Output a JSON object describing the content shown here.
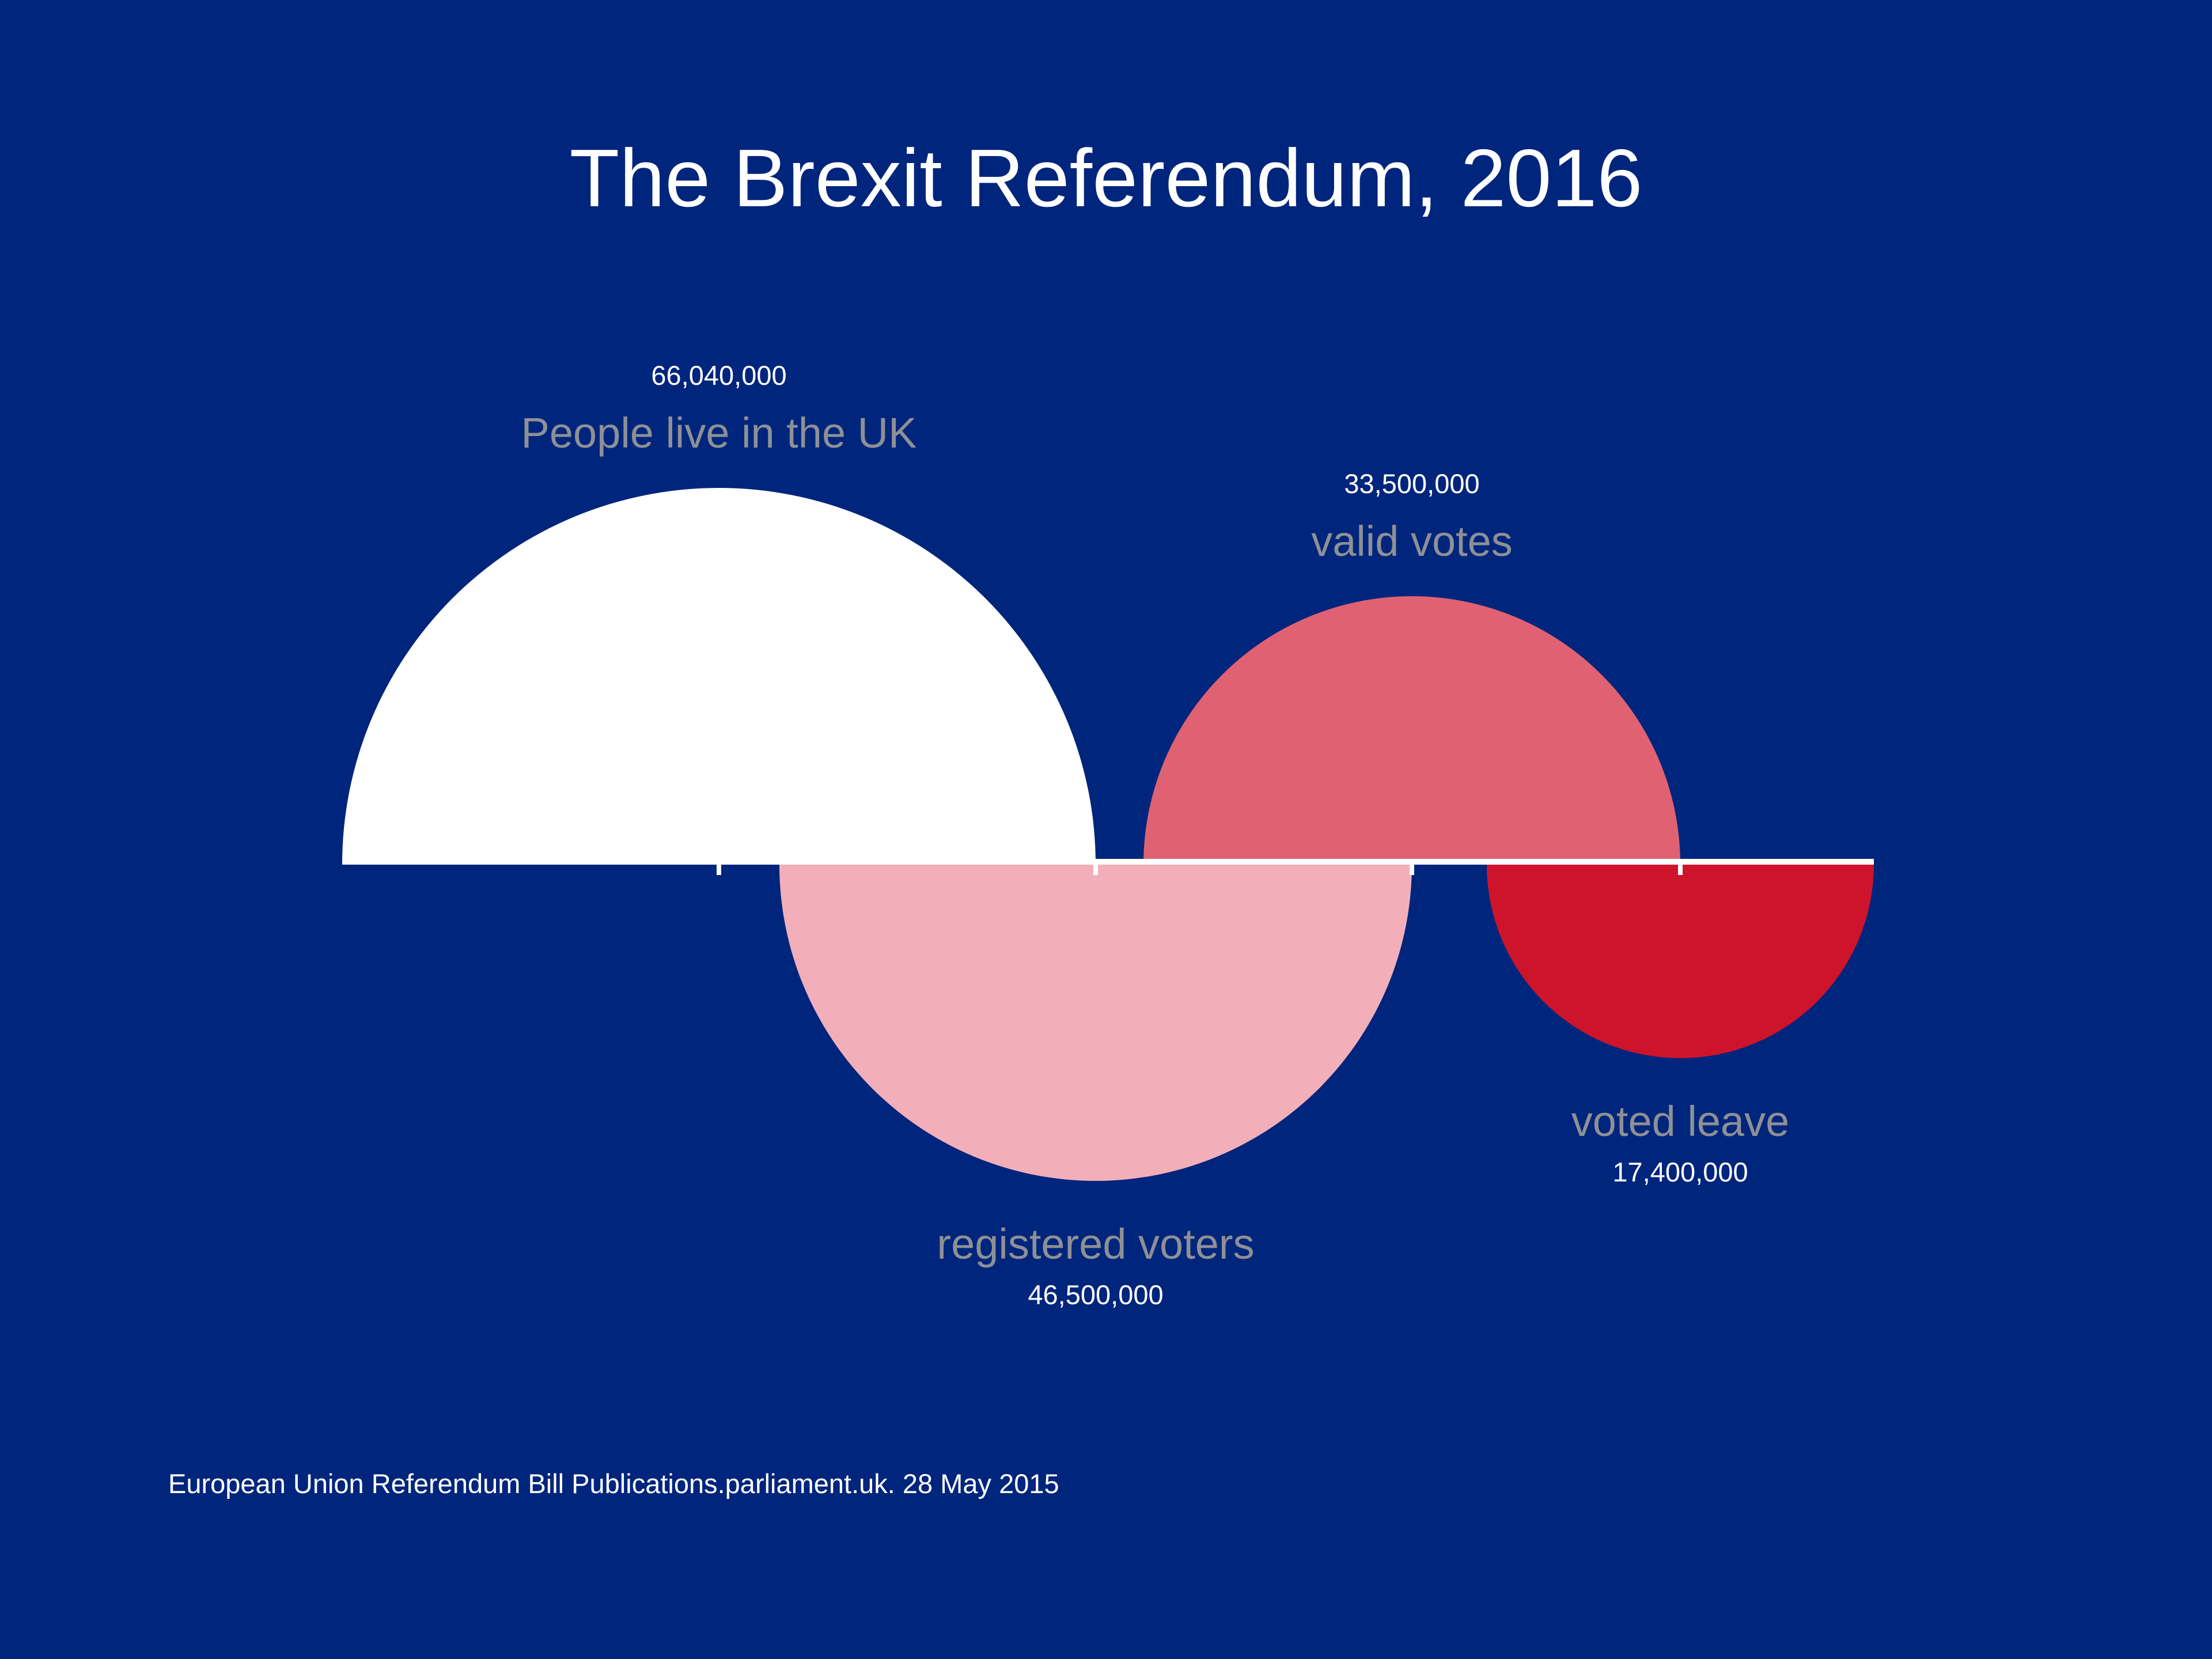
{
  "title": "The Brexit Referendum, 2016",
  "source": "European Union Referendum Bill Publications.parliament.uk. 28 May 2015",
  "colors": {
    "background": "#00257C",
    "title_text": "#FFFFFF",
    "value_text": "#FFFFFF",
    "label_text": "#8E9095",
    "axis": "#FFFFFF",
    "source_text": "#FFFFFF"
  },
  "chart_data": {
    "type": "area",
    "subtype": "proportional-area-semicircles",
    "title": "The Brexit Referendum, 2016",
    "xlabel": "",
    "ylabel": "",
    "grid": false,
    "legend": "none",
    "baseline_axis": true,
    "axis_ticks_at_circle_centers": true,
    "series": [
      {
        "label": "People live in the UK",
        "value": 66040000,
        "value_label": "66,040,000",
        "color": "#FFFFFF",
        "side": "up"
      },
      {
        "label": "registered voters",
        "value": 46500000,
        "value_label": "46,500,000",
        "color": "#F2AFB9",
        "side": "down"
      },
      {
        "label": "valid votes",
        "value": 33500000,
        "value_label": "33,500,000",
        "color": "#E06272",
        "side": "up"
      },
      {
        "label": "voted leave",
        "value": 17400000,
        "value_label": "17,400,000",
        "color": "#CE142A",
        "side": "down"
      }
    ]
  }
}
